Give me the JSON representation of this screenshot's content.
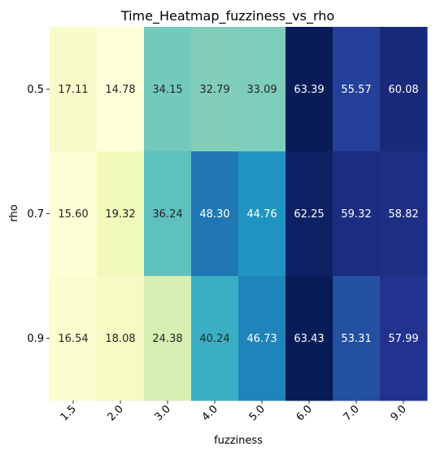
{
  "chart_data": {
    "type": "heatmap",
    "title": "Time_Heatmap_fuzziness_vs_rho",
    "xlabel": "fuzziness",
    "ylabel": "rho",
    "x_categories": [
      "1.5",
      "2.0",
      "3.0",
      "4.0",
      "5.0",
      "6.0",
      "7.0",
      "9.0"
    ],
    "y_categories": [
      "0.5",
      "0.7",
      "0.9"
    ],
    "values": [
      [
        17.11,
        14.78,
        34.15,
        32.79,
        33.09,
        63.39,
        55.57,
        60.08
      ],
      [
        15.6,
        19.32,
        36.24,
        48.3,
        44.76,
        62.25,
        59.32,
        58.82
      ],
      [
        16.54,
        18.08,
        24.38,
        40.24,
        46.73,
        63.43,
        53.31,
        57.99
      ]
    ],
    "value_labels": [
      [
        "17.11",
        "14.78",
        "34.15",
        "32.79",
        "33.09",
        "63.39",
        "55.57",
        "60.08"
      ],
      [
        "15.60",
        "19.32",
        "36.24",
        "48.30",
        "44.76",
        "62.25",
        "59.32",
        "58.82"
      ],
      [
        "16.54",
        "18.08",
        "24.38",
        "40.24",
        "46.73",
        "63.43",
        "53.31",
        "57.99"
      ]
    ],
    "colormap": "YlGnBu",
    "vmin": 14.78,
    "vmax": 63.43,
    "colorbar": false,
    "grid": false
  }
}
